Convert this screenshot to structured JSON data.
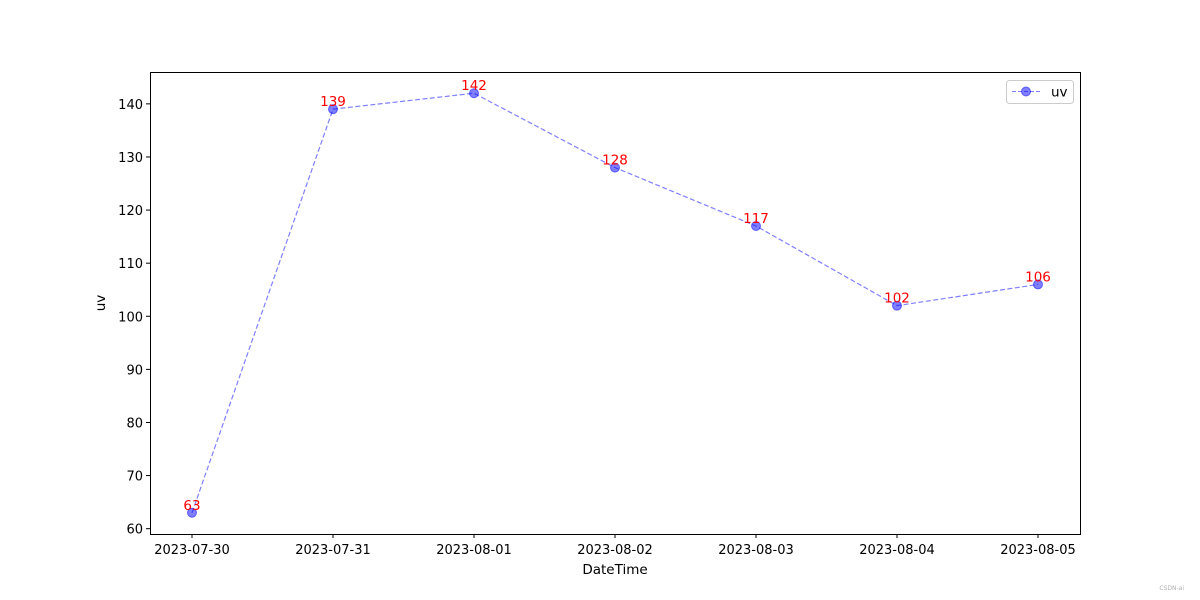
{
  "chart_data": {
    "type": "line",
    "title": "",
    "xlabel": "DateTime",
    "ylabel": "uv",
    "categories": [
      "2023-07-30",
      "2023-07-31",
      "2023-08-01",
      "2023-08-02",
      "2023-08-03",
      "2023-08-04",
      "2023-08-05"
    ],
    "series": [
      {
        "name": "uv",
        "values": [
          63,
          139,
          142,
          128,
          117,
          102,
          106
        ],
        "color": "#0000ff",
        "line_style": "dashed",
        "marker": "circle",
        "alpha": 0.5
      }
    ],
    "data_label_color": "#ff0000",
    "y_ticks": [
      60,
      70,
      80,
      90,
      100,
      110,
      120,
      130,
      140
    ],
    "ylim": [
      59,
      146
    ],
    "grid": false,
    "legend": "top-right"
  },
  "watermark": "CSDN-ai"
}
